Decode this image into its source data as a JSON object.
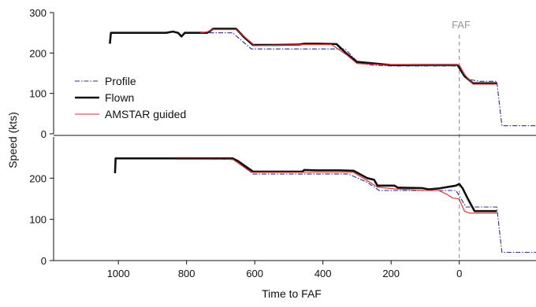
{
  "chart_data": {
    "type": "line",
    "xlabel": "Time to FAF",
    "ylabel": "Speed (kts)",
    "x_reversed": true,
    "xlim": [
      1190,
      -225
    ],
    "x_ticks": [
      1000,
      800,
      600,
      400,
      200,
      0
    ],
    "x_tick_labels": [
      "1000",
      "800",
      "600",
      "400",
      "200",
      "0"
    ],
    "reference_line": {
      "x": 0,
      "label": "FAF",
      "color": "#999999",
      "style": "dashed"
    },
    "legend": {
      "placement": "bottom-left",
      "panel": 0
    },
    "series_styles": {
      "Profile": {
        "color": "#2a2aa0",
        "dash": "6,2,1.5,2",
        "width": 1.1
      },
      "Flown": {
        "color": "#111111",
        "dash": "",
        "width": 2.6
      },
      "AMSTAR guided": {
        "color": "#e8262b",
        "dash": "",
        "width": 1.1
      }
    },
    "panels": [
      {
        "ylim": [
          0,
          300
        ],
        "y_ticks": [
          0,
          100,
          200,
          300
        ],
        "y_tick_labels": [
          "0",
          "100",
          "200",
          "300"
        ],
        "series": [
          {
            "name": "Profile",
            "points": [
              [
                760,
                250
              ],
              [
                740,
                250
              ],
              [
                710,
                250
              ],
              [
                665,
                250
              ],
              [
                610,
                210
              ],
              [
                565,
                210
              ],
              [
                335,
                210
              ],
              [
                295,
                175
              ],
              [
                255,
                170
              ],
              [
                200,
                168
              ],
              [
                45,
                168
              ],
              [
                0,
                168
              ],
              [
                -25,
                135
              ],
              [
                -60,
                130
              ],
              [
                -110,
                130
              ],
              [
                -125,
                20
              ],
              [
                -225,
                20
              ]
            ]
          },
          {
            "name": "Flown",
            "points": [
              [
                1025,
                223
              ],
              [
                1022,
                250
              ],
              [
                860,
                250
              ],
              [
                840,
                253
              ],
              [
                825,
                250
              ],
              [
                815,
                241
              ],
              [
                805,
                250
              ],
              [
                740,
                250
              ],
              [
                730,
                255
              ],
              [
                722,
                260
              ],
              [
                655,
                260
              ],
              [
                630,
                238
              ],
              [
                605,
                220
              ],
              [
                540,
                220
              ],
              [
                470,
                221
              ],
              [
                455,
                223
              ],
              [
                415,
                223
              ],
              [
                360,
                222
              ],
              [
                330,
                198
              ],
              [
                300,
                178
              ],
              [
                260,
                175
              ],
              [
                225,
                172
              ],
              [
                200,
                170
              ],
              [
                140,
                170
              ],
              [
                100,
                170
              ],
              [
                20,
                170
              ],
              [
                5,
                170
              ],
              [
                -15,
                143
              ],
              [
                -40,
                125
              ],
              [
                -110,
                125
              ]
            ]
          },
          {
            "name": "AMSTAR guided",
            "points": [
              [
                760,
                250
              ],
              [
                740,
                252
              ],
              [
                725,
                258
              ],
              [
                655,
                258
              ],
              [
                600,
                218
              ],
              [
                470,
                221
              ],
              [
                375,
                221
              ],
              [
                330,
                195
              ],
              [
                300,
                174
              ],
              [
                230,
                171
              ],
              [
                160,
                171
              ],
              [
                100,
                170
              ],
              [
                15,
                170
              ],
              [
                0,
                170
              ],
              [
                -15,
                147
              ],
              [
                -40,
                123
              ],
              [
                -110,
                123
              ]
            ]
          }
        ]
      },
      {
        "ylim": [
          0,
          300
        ],
        "y_ticks": [
          0,
          100,
          200
        ],
        "y_tick_labels": [
          "0",
          "100",
          "200"
        ],
        "series": [
          {
            "name": "Profile",
            "points": [
              [
                830,
                248
              ],
              [
                655,
                245
              ],
              [
                605,
                210
              ],
              [
                325,
                210
              ],
              [
                270,
                190
              ],
              [
                235,
                170
              ],
              [
                120,
                170
              ],
              [
                45,
                170
              ],
              [
                10,
                170
              ],
              [
                -20,
                130
              ],
              [
                -60,
                130
              ],
              [
                -110,
                130
              ],
              [
                -125,
                20
              ],
              [
                -225,
                20
              ]
            ]
          },
          {
            "name": "Flown",
            "points": [
              [
                1010,
                212
              ],
              [
                1008,
                248
              ],
              [
                850,
                248
              ],
              [
                665,
                248
              ],
              [
                650,
                242
              ],
              [
                605,
                216
              ],
              [
                580,
                216
              ],
              [
                460,
                216
              ],
              [
                455,
                220
              ],
              [
                420,
                219
              ],
              [
                350,
                219
              ],
              [
                310,
                218
              ],
              [
                270,
                200
              ],
              [
                250,
                196
              ],
              [
                240,
                182
              ],
              [
                190,
                182
              ],
              [
                180,
                177
              ],
              [
                110,
                176
              ],
              [
                90,
                173
              ],
              [
                60,
                175
              ],
              [
                10,
                182
              ],
              [
                0,
                186
              ],
              [
                -10,
                175
              ],
              [
                -25,
                150
              ],
              [
                -45,
                120
              ],
              [
                -110,
                120
              ]
            ]
          },
          {
            "name": "AMSTAR guided",
            "points": [
              [
                830,
                246
              ],
              [
                665,
                246
              ],
              [
                610,
                214
              ],
              [
                450,
                214
              ],
              [
                310,
                214
              ],
              [
                270,
                194
              ],
              [
                240,
                178
              ],
              [
                190,
                174
              ],
              [
                100,
                170
              ],
              [
                60,
                170
              ],
              [
                35,
                160
              ],
              [
                20,
                152
              ],
              [
                5,
                150
              ],
              [
                0,
                148
              ],
              [
                -15,
                120
              ],
              [
                -30,
                115
              ],
              [
                -110,
                115
              ]
            ]
          }
        ]
      }
    ]
  }
}
